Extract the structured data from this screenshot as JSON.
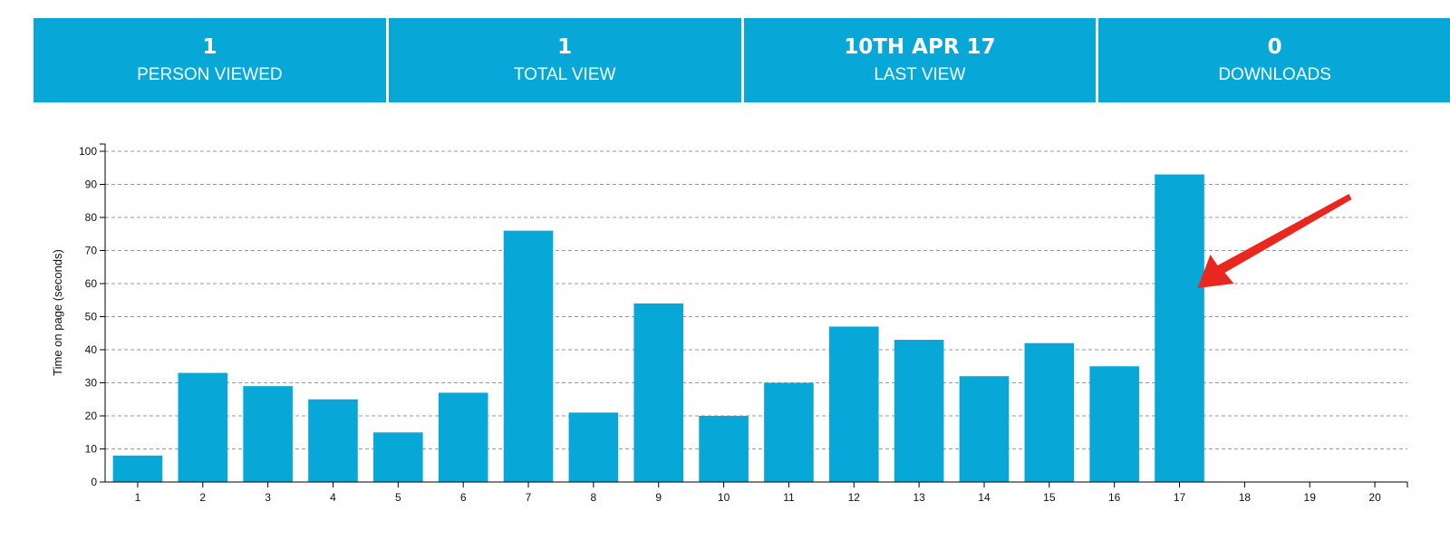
{
  "stats": [
    {
      "value": "1",
      "label": "PERSON VIEWED"
    },
    {
      "value": "1",
      "label": "TOTAL VIEW"
    },
    {
      "value": "10TH APR 17",
      "label": "LAST VIEW"
    },
    {
      "value": "0",
      "label": "DOWNLOADS"
    }
  ],
  "colors": {
    "accent": "#07a8d8",
    "arrow": "#e8281e",
    "gridline": "#999999"
  },
  "chart_data": {
    "type": "bar",
    "categories": [
      "1",
      "2",
      "3",
      "4",
      "5",
      "6",
      "7",
      "8",
      "9",
      "10",
      "11",
      "12",
      "13",
      "14",
      "15",
      "16",
      "17",
      "18",
      "19",
      "20"
    ],
    "values": [
      8,
      33,
      29,
      25,
      15,
      27,
      76,
      21,
      54,
      20,
      30,
      47,
      43,
      32,
      42,
      35,
      93,
      0,
      0,
      0
    ],
    "ylabel": "Time on page (seconds)",
    "xlabel": "",
    "ylim": [
      0,
      100
    ],
    "yticks": [
      0,
      10,
      20,
      30,
      40,
      50,
      60,
      70,
      80,
      90,
      100
    ],
    "grid": true,
    "annotation": {
      "type": "arrow",
      "target_category": "17"
    }
  }
}
